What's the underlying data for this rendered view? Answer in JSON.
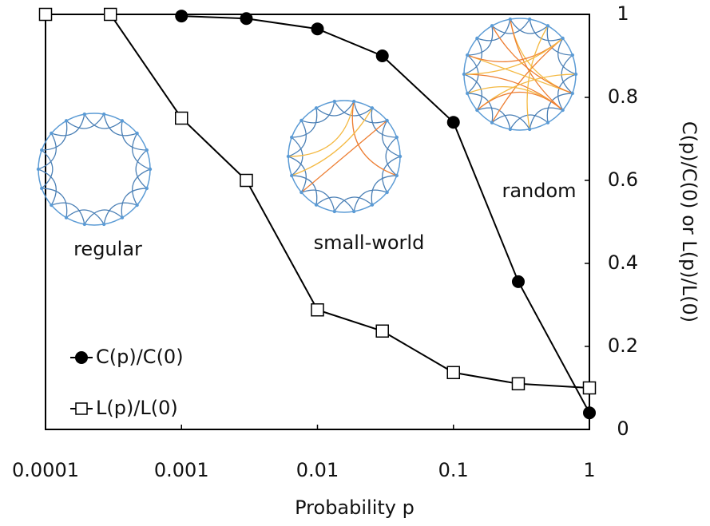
{
  "chart_data": {
    "type": "line",
    "x_label": "Probability p",
    "y_label": "C(p)/C(0) or L(p)/L(0)",
    "xscale": "log",
    "xlim": [
      0.0001,
      1
    ],
    "xticks": [
      0.0001,
      0.001,
      0.01,
      0.1,
      1
    ],
    "ylim": [
      0,
      1
    ],
    "yticks": [
      0,
      0.2,
      0.4,
      0.6,
      0.8,
      1
    ],
    "legend": "lower left",
    "annotations": [
      "regular",
      "small-world",
      "random"
    ],
    "series": [
      {
        "name": "C(p)/C(0)",
        "color": "#000000",
        "marker": "filled-circle",
        "x": [
          0.001,
          0.003,
          0.01,
          0.03,
          0.1,
          0.3,
          1
        ],
        "values": [
          0.996,
          0.99,
          0.965,
          0.9,
          0.74,
          0.356,
          0.04
        ]
      },
      {
        "name": "L(p)/L(0)",
        "color": "#000000",
        "marker": "open-square",
        "x": [
          0.0001,
          0.0003,
          0.001,
          0.003,
          0.01,
          0.03,
          0.1,
          0.3,
          1
        ],
        "values": [
          1,
          1,
          0.75,
          0.6,
          0.288,
          0.237,
          0.137,
          0.11,
          0.1
        ]
      }
    ]
  }
}
